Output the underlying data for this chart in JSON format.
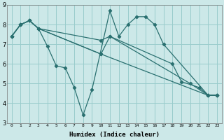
{
  "xlabel": "Humidex (Indice chaleur)",
  "bg_color": "#cce8e8",
  "grid_color": "#99cccc",
  "line_color": "#2a7070",
  "xlim": [
    -0.5,
    23.5
  ],
  "ylim": [
    3,
    9
  ],
  "series": [
    {
      "x": [
        0,
        1,
        2,
        3,
        4,
        5,
        6,
        7,
        8,
        9,
        11,
        12,
        13,
        14,
        15,
        16,
        17,
        22,
        23
      ],
      "y": [
        7.4,
        8.0,
        8.2,
        7.8,
        6.9,
        5.9,
        5.8,
        4.8,
        3.4,
        4.7,
        8.7,
        7.4,
        8.0,
        8.4,
        8.4,
        8.0,
        7.0,
        4.4,
        4.4
      ]
    },
    {
      "x": [
        0,
        1,
        2,
        3,
        10,
        11,
        18,
        19,
        21,
        22,
        23
      ],
      "y": [
        7.4,
        8.0,
        8.2,
        7.8,
        7.2,
        7.4,
        6.0,
        5.1,
        4.8,
        4.4,
        4.4
      ]
    },
    {
      "x": [
        0,
        1,
        2,
        3,
        10,
        11,
        20,
        22,
        23
      ],
      "y": [
        7.4,
        8.0,
        8.2,
        7.8,
        6.5,
        7.4,
        5.0,
        4.4,
        4.4
      ]
    },
    {
      "x": [
        0,
        1,
        2,
        3,
        10,
        22,
        23
      ],
      "y": [
        7.4,
        8.0,
        8.2,
        7.8,
        6.5,
        4.4,
        4.4
      ]
    }
  ]
}
